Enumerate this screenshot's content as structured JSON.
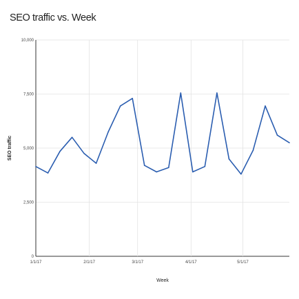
{
  "chart_data": {
    "type": "line",
    "title": "SEO traffic vs. Week",
    "xlabel": "Week",
    "ylabel": "SEO traffic",
    "ylim": [
      0,
      10000
    ],
    "y_ticks": [
      "0",
      "2,500",
      "5,000",
      "7,500",
      "10,000"
    ],
    "x_ticks": [
      "1/1/17",
      "2/1/17",
      "3/1/17",
      "4/1/17",
      "5/1/17"
    ],
    "x_tick_dates": [
      "2017-01-01",
      "2017-02-01",
      "2017-03-01",
      "2017-04-01",
      "2017-05-01"
    ],
    "xlim": [
      "2017-01-01",
      "2017-05-28"
    ],
    "grid": true,
    "legend": "none",
    "line_color": "#2a5db0",
    "series": [
      {
        "x": [
          "2017-01-01",
          "2017-01-08",
          "2017-01-15",
          "2017-01-22",
          "2017-01-29",
          "2017-02-05",
          "2017-02-12",
          "2017-02-19",
          "2017-02-26",
          "2017-03-05",
          "2017-03-12",
          "2017-03-19",
          "2017-03-26",
          "2017-04-02",
          "2017-04-09",
          "2017-04-16",
          "2017-04-23",
          "2017-04-30",
          "2017-05-07",
          "2017-05-14",
          "2017-05-21",
          "2017-05-28"
        ],
        "values": [
          4150,
          3850,
          4850,
          5500,
          4750,
          4300,
          5750,
          6950,
          7300,
          4200,
          3900,
          4100,
          7550,
          3900,
          4150,
          7550,
          4500,
          3800,
          4900,
          6950,
          5600,
          5250
        ]
      }
    ]
  }
}
